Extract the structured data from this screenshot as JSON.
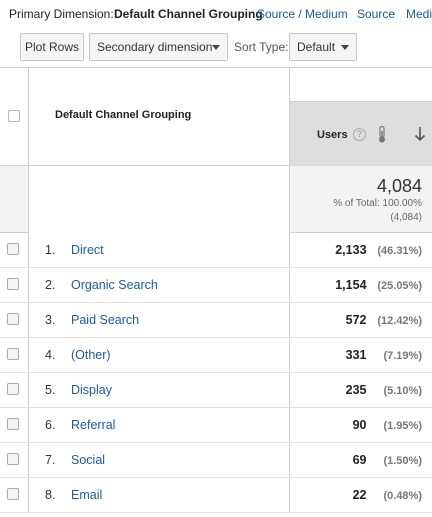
{
  "primary_dimension": {
    "label": "Primary Dimension:",
    "selected": "Default Channel Grouping",
    "options": [
      "Source / Medium",
      "Source",
      "Medi"
    ]
  },
  "toolbar": {
    "plot_rows": "Plot Rows",
    "secondary_dimension": "Secondary dimension",
    "sort_type_label": "Sort Type:",
    "sort_type_value": "Default"
  },
  "table": {
    "dimension_header": "Default Channel Grouping",
    "metric_header": "Users",
    "help_icon": "?",
    "icons": [
      "question-icon",
      "thermometer-icon",
      "arrow-down-icon"
    ],
    "summary": {
      "total": "4,084",
      "pct_of_total": "% of Total: 100.00%",
      "pct_detail": "(4,084)"
    },
    "rows": [
      {
        "index": "1.",
        "name": "Direct",
        "users": "2,133",
        "pct": "(46.31%)"
      },
      {
        "index": "2.",
        "name": "Organic Search",
        "users": "1,154",
        "pct": "(25.05%)"
      },
      {
        "index": "3.",
        "name": "Paid Search",
        "users": "572",
        "pct": "(12.42%)"
      },
      {
        "index": "4.",
        "name": "(Other)",
        "users": "331",
        "pct": "(7.19%)"
      },
      {
        "index": "5.",
        "name": "Display",
        "users": "235",
        "pct": "(5.10%)"
      },
      {
        "index": "6.",
        "name": "Referral",
        "users": "90",
        "pct": "(1.95%)"
      },
      {
        "index": "7.",
        "name": "Social",
        "users": "69",
        "pct": "(1.50%)"
      },
      {
        "index": "8.",
        "name": "Email",
        "users": "22",
        "pct": "(0.48%)"
      }
    ]
  },
  "colors": {
    "link": "#1c5a9e",
    "header_bg": "#dedede",
    "summary_bg": "#f3f3f3"
  }
}
